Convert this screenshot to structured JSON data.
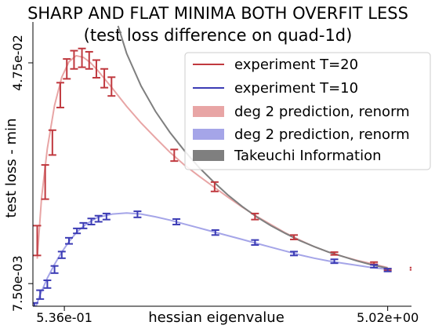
{
  "chart_data": {
    "type": "line",
    "title": "SHARP AND FLAT MINIMA BOTH OVERFIT LESS",
    "subtitle": "(test loss difference on quad-1d)",
    "xlabel": "hessian eigenvalue",
    "ylabel": "test loss - min",
    "x_ticks": [
      {
        "value": 0.536,
        "label": "5.36e-01"
      },
      {
        "value": 5.02,
        "label": "5.02e+00"
      }
    ],
    "y_ticks": [
      {
        "value": 0.0075,
        "label": "7.50e-03"
      },
      {
        "value": 0.0475,
        "label": "4.75e-02"
      }
    ],
    "xlim": [
      0.1,
      5.35
    ],
    "ylim": [
      0.0034,
      0.0549
    ],
    "legend_position": "top-right",
    "legend": [
      {
        "label": "experiment T=20",
        "kind": "line",
        "color": "#c0393f"
      },
      {
        "label": "experiment T=10",
        "kind": "line",
        "color": "#3c3cb5"
      },
      {
        "label": "deg 2 prediction, renorm",
        "kind": "patch",
        "color": "#e8a5a5"
      },
      {
        "label": "deg 2 prediction, renorm",
        "kind": "patch",
        "color": "#a5a5e8"
      },
      {
        "label": "Takeuchi Information",
        "kind": "patch",
        "color": "#7f7f7f"
      }
    ],
    "series": [
      {
        "name": "experiment T=20",
        "kind": "errorbar",
        "color": "#c0393f",
        "points": [
          {
            "x": 0.16,
            "y": 0.0153,
            "lo": 0.0126,
            "hi": 0.018
          },
          {
            "x": 0.27,
            "y": 0.0259,
            "lo": 0.0228,
            "hi": 0.029
          },
          {
            "x": 0.37,
            "y": 0.033,
            "lo": 0.0308,
            "hi": 0.0353
          },
          {
            "x": 0.48,
            "y": 0.0417,
            "lo": 0.0394,
            "hi": 0.0439
          },
          {
            "x": 0.57,
            "y": 0.0464,
            "lo": 0.0446,
            "hi": 0.0482
          },
          {
            "x": 0.67,
            "y": 0.048,
            "lo": 0.0464,
            "hi": 0.0497
          },
          {
            "x": 0.78,
            "y": 0.0484,
            "lo": 0.0467,
            "hi": 0.0501
          },
          {
            "x": 0.88,
            "y": 0.0479,
            "lo": 0.0464,
            "hi": 0.0495
          },
          {
            "x": 0.98,
            "y": 0.0464,
            "lo": 0.0448,
            "hi": 0.048
          },
          {
            "x": 1.09,
            "y": 0.0447,
            "lo": 0.043,
            "hi": 0.0464
          },
          {
            "x": 1.19,
            "y": 0.0432,
            "lo": 0.0415,
            "hi": 0.0449
          },
          {
            "x": 2.06,
            "y": 0.0307,
            "lo": 0.0297,
            "hi": 0.0318
          },
          {
            "x": 2.62,
            "y": 0.025,
            "lo": 0.0242,
            "hi": 0.0259
          },
          {
            "x": 3.18,
            "y": 0.0196,
            "lo": 0.0191,
            "hi": 0.0202
          },
          {
            "x": 3.72,
            "y": 0.0159,
            "lo": 0.0155,
            "hi": 0.0163
          },
          {
            "x": 4.28,
            "y": 0.0129,
            "lo": 0.0127,
            "hi": 0.0132
          },
          {
            "x": 4.83,
            "y": 0.0112,
            "lo": 0.011,
            "hi": 0.0114
          },
          {
            "x": 5.38,
            "y": 0.0102,
            "lo": 0.01,
            "hi": 0.0104
          },
          {
            "x": 5.02,
            "y": 0.0101,
            "lo": 0.0099,
            "hi": 0.0102
          }
        ]
      },
      {
        "name": "experiment T=10",
        "kind": "errorbar",
        "color": "#3c3cb5",
        "points": [
          {
            "x": 0.12,
            "y": 0.0033,
            "lo": 0.0027,
            "hi": 0.004
          },
          {
            "x": 0.2,
            "y": 0.0055,
            "lo": 0.0047,
            "hi": 0.0063
          },
          {
            "x": 0.3,
            "y": 0.0074,
            "lo": 0.0067,
            "hi": 0.0081
          },
          {
            "x": 0.4,
            "y": 0.01,
            "lo": 0.0094,
            "hi": 0.0107
          },
          {
            "x": 0.5,
            "y": 0.0127,
            "lo": 0.0121,
            "hi": 0.0133
          },
          {
            "x": 0.6,
            "y": 0.0153,
            "lo": 0.0147,
            "hi": 0.0158
          },
          {
            "x": 0.71,
            "y": 0.017,
            "lo": 0.0166,
            "hi": 0.0175
          },
          {
            "x": 0.8,
            "y": 0.018,
            "lo": 0.0175,
            "hi": 0.0185
          },
          {
            "x": 0.91,
            "y": 0.0187,
            "lo": 0.0182,
            "hi": 0.0193
          },
          {
            "x": 1.01,
            "y": 0.0192,
            "lo": 0.0187,
            "hi": 0.0198
          },
          {
            "x": 1.12,
            "y": 0.0197,
            "lo": 0.0191,
            "hi": 0.0202
          },
          {
            "x": 1.55,
            "y": 0.02,
            "lo": 0.0195,
            "hi": 0.0206
          },
          {
            "x": 2.09,
            "y": 0.0187,
            "lo": 0.0182,
            "hi": 0.0192
          },
          {
            "x": 2.63,
            "y": 0.0167,
            "lo": 0.0163,
            "hi": 0.0172
          },
          {
            "x": 3.18,
            "y": 0.0149,
            "lo": 0.0145,
            "hi": 0.0154
          },
          {
            "x": 3.72,
            "y": 0.0129,
            "lo": 0.0126,
            "hi": 0.0133
          },
          {
            "x": 4.28,
            "y": 0.0115,
            "lo": 0.0112,
            "hi": 0.0119
          },
          {
            "x": 4.83,
            "y": 0.0106,
            "lo": 0.0104,
            "hi": 0.0109
          },
          {
            "x": 5.02,
            "y": 0.0099,
            "lo": 0.0097,
            "hi": 0.0102
          }
        ]
      },
      {
        "name": "deg 2 prediction, renorm",
        "kind": "curve",
        "color": "#e8a5a5",
        "points": [
          [
            0.16,
            0.012
          ],
          [
            0.22,
            0.023
          ],
          [
            0.3,
            0.032
          ],
          [
            0.4,
            0.0398
          ],
          [
            0.5,
            0.0449
          ],
          [
            0.6,
            0.0477
          ],
          [
            0.7,
            0.0488
          ],
          [
            0.8,
            0.0485
          ],
          [
            0.9,
            0.0475
          ],
          [
            1.0,
            0.0461
          ],
          [
            1.2,
            0.0429
          ],
          [
            1.4,
            0.0396
          ],
          [
            1.6,
            0.0366
          ],
          [
            1.8,
            0.0339
          ],
          [
            2.0,
            0.0313
          ],
          [
            2.2,
            0.029
          ],
          [
            2.4,
            0.027
          ],
          [
            2.6,
            0.0251
          ],
          [
            2.8,
            0.0232
          ],
          [
            3.0,
            0.0214
          ],
          [
            3.2,
            0.0197
          ],
          [
            3.4,
            0.0182
          ],
          [
            3.6,
            0.0167
          ],
          [
            3.8,
            0.0154
          ],
          [
            4.0,
            0.0142
          ],
          [
            4.2,
            0.0132
          ],
          [
            4.4,
            0.0124
          ],
          [
            4.6,
            0.0117
          ],
          [
            4.8,
            0.0111
          ],
          [
            5.02,
            0.0104
          ]
        ]
      },
      {
        "name": "deg 2 prediction, renorm",
        "kind": "curve",
        "color": "#a5a5e8",
        "points": [
          [
            0.12,
            0.0025
          ],
          [
            0.2,
            0.0055
          ],
          [
            0.3,
            0.0085
          ],
          [
            0.4,
            0.011
          ],
          [
            0.5,
            0.0132
          ],
          [
            0.6,
            0.0151
          ],
          [
            0.7,
            0.0167
          ],
          [
            0.8,
            0.0179
          ],
          [
            0.9,
            0.0188
          ],
          [
            1.0,
            0.0195
          ],
          [
            1.2,
            0.0201
          ],
          [
            1.4,
            0.0203
          ],
          [
            1.6,
            0.0201
          ],
          [
            1.8,
            0.0196
          ],
          [
            2.0,
            0.019
          ],
          [
            2.2,
            0.0183
          ],
          [
            2.4,
            0.0176
          ],
          [
            2.6,
            0.0169
          ],
          [
            2.8,
            0.0162
          ],
          [
            3.0,
            0.0155
          ],
          [
            3.2,
            0.0148
          ],
          [
            3.4,
            0.0141
          ],
          [
            3.6,
            0.0134
          ],
          [
            3.8,
            0.0127
          ],
          [
            4.0,
            0.0121
          ],
          [
            4.2,
            0.0116
          ],
          [
            4.4,
            0.0112
          ],
          [
            4.6,
            0.0108
          ],
          [
            4.8,
            0.0104
          ],
          [
            5.02,
            0.0101
          ]
        ]
      },
      {
        "name": "Takeuchi Information",
        "kind": "curve",
        "color": "#7f7f7f",
        "points": [
          [
            1.28,
            0.0542
          ],
          [
            1.4,
            0.0492
          ],
          [
            1.6,
            0.0433
          ],
          [
            1.8,
            0.0387
          ],
          [
            2.0,
            0.0349
          ],
          [
            2.2,
            0.0316
          ],
          [
            2.4,
            0.0286
          ],
          [
            2.6,
            0.026
          ],
          [
            2.8,
            0.0236
          ],
          [
            3.0,
            0.0215
          ],
          [
            3.2,
            0.0196
          ],
          [
            3.4,
            0.018
          ],
          [
            3.6,
            0.0166
          ],
          [
            3.8,
            0.0153
          ],
          [
            4.0,
            0.0142
          ],
          [
            4.2,
            0.0132
          ],
          [
            4.4,
            0.0124
          ],
          [
            4.6,
            0.0116
          ],
          [
            4.8,
            0.0109
          ],
          [
            5.02,
            0.0103
          ]
        ]
      }
    ]
  }
}
